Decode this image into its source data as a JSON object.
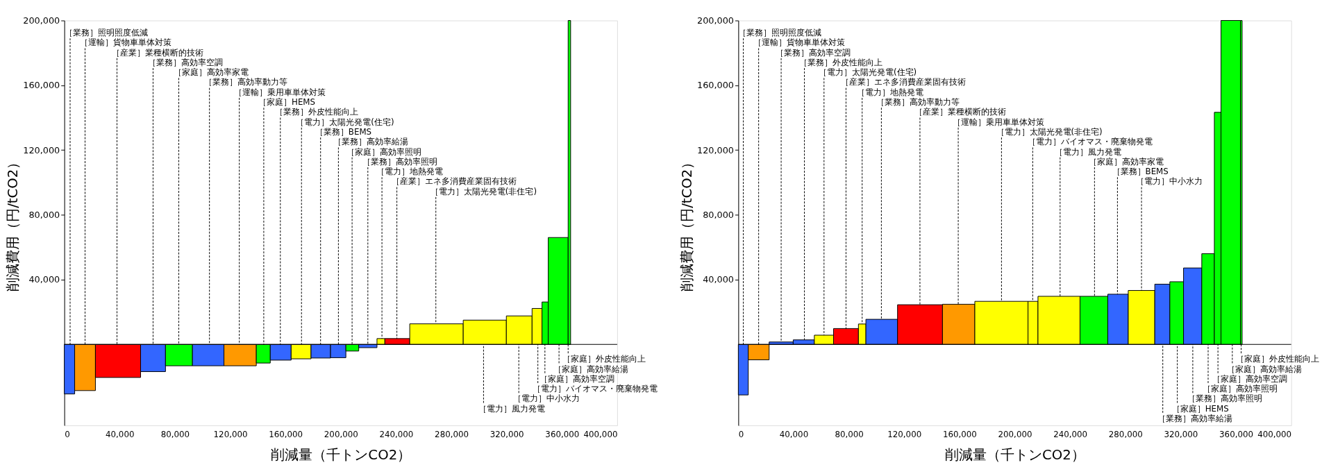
{
  "chart_data": [
    {
      "type": "histogram",
      "xlabel": "削減量（千トンCO2）",
      "ylabel": "削減費用（円/tCO2）",
      "xlim": [
        0,
        400000
      ],
      "xticks": [
        0,
        {
          "value": 40000,
          "label": "40,000"
        },
        {
          "value": 80000,
          "label": "80,000"
        },
        {
          "value": 120000,
          "label": "120,000"
        },
        {
          "value": 160000,
          "label": "160,000"
        },
        {
          "value": 200000,
          "label": "200,000"
        },
        {
          "value": 240000,
          "label": "240,000"
        },
        {
          "value": 280000,
          "label": "280,000"
        },
        {
          "value": 320000,
          "label": "320,000"
        },
        {
          "value": 360000,
          "label": "360,000"
        },
        {
          "value": 400000,
          "label": "400,000"
        }
      ],
      "ylim": [
        -50000,
        200000
      ],
      "yticks": [
        {
          "value": 40000,
          "label": "40,000"
        },
        {
          "value": 80000,
          "label": "80,000"
        },
        {
          "value": 120000,
          "label": "120,000"
        },
        {
          "value": 160000,
          "label": "160,000"
        },
        {
          "value": 200000,
          "label": "200,000"
        }
      ],
      "ref_lines": [
        {
          "axis": "y",
          "value": 0,
          "color": "#000000"
        }
      ],
      "bins": [
        0,
        7500,
        22500,
        55200,
        73200,
        92700,
        115500,
        138900,
        149000,
        164100,
        178500,
        192600,
        203700,
        213000,
        226200,
        231900,
        249900,
        288600,
        319800,
        338400,
        345600,
        350100,
        364500,
        366300
      ],
      "values": [
        -30600,
        -28500,
        -20400,
        -16800,
        -13200,
        -13200,
        -13200,
        -11500,
        -9700,
        -8900,
        -8400,
        -8200,
        -4100,
        -2000,
        3600,
        3600,
        12700,
        15000,
        17600,
        22200,
        26200,
        66000,
        200000
      ],
      "colors": [
        "#3366ff",
        "#ff9900",
        "#ff0000",
        "#3366ff",
        "#00ff00",
        "#3366ff",
        "#ff9900",
        "#00ff00",
        "#3366ff",
        "#ffff00",
        "#3366ff",
        "#3366ff",
        "#00ff00",
        "#3366ff",
        "#ffff00",
        "#ff0000",
        "#ffff00",
        "#ffff00",
        "#ffff00",
        "#ffff00",
        "#00ff00",
        "#00ff00",
        "#00ff00"
      ],
      "annotations": [
        {
          "text": "［業務］照明照度低減",
          "x": 4200,
          "y": 0
        },
        {
          "text": "［運輸］貨物車単体対策",
          "x": 15000,
          "y": 0
        },
        {
          "text": "［産業］業種横断的技術",
          "x": 38100,
          "y": 0
        },
        {
          "text": "［業務］高効率空調",
          "x": 64200,
          "y": 0
        },
        {
          "text": "［家庭］高効率家電",
          "x": 82800,
          "y": 0
        },
        {
          "text": "［業務］高効率動力等",
          "x": 105000,
          "y": 0
        },
        {
          "text": "［運輸］乗用車単体対策",
          "x": 126600,
          "y": 0
        },
        {
          "text": "［家庭］HEMS",
          "x": 144300,
          "y": 0
        },
        {
          "text": "［業務］外皮性能向上",
          "x": 156300,
          "y": 0
        },
        {
          "text": "［電力］太陽光発電(住宅)",
          "x": 171600,
          "y": 0
        },
        {
          "text": "［業務］BEMS",
          "x": 185400,
          "y": 0
        },
        {
          "text": "［業務］高効率給湯",
          "x": 198300,
          "y": 0
        },
        {
          "text": "［家庭］高効率照明",
          "x": 208200,
          "y": 0
        },
        {
          "text": "［業務］高効率照明",
          "x": 219600,
          "y": 0
        },
        {
          "text": "［電力］地熱発電",
          "x": 229800,
          "y": 3600
        },
        {
          "text": "［産業］エネ多消費産業固有技術",
          "x": 240600,
          "y": 3600
        },
        {
          "text": "［電力］太陽光発電(非住宅)",
          "x": 268800,
          "y": 12700
        },
        {
          "text": "［電力］風力発電",
          "x": 303300,
          "y": 0
        },
        {
          "text": "［電力］中小水力",
          "x": 328800,
          "y": 0
        },
        {
          "text": "［電力］バイオマス・廃棄物発電",
          "x": 342600,
          "y": 0
        },
        {
          "text": "［家庭］高効率空調",
          "x": 347700,
          "y": 0
        },
        {
          "text": "［家庭］高効率給湯",
          "x": 357900,
          "y": 0
        },
        {
          "text": "［家庭］外皮性能向上",
          "x": 364500,
          "y": 0
        }
      ]
    },
    {
      "type": "histogram",
      "xlabel": "削減量（千トンCO2）",
      "ylabel": "削減費用（円/tCO2）",
      "xlim": [
        0,
        400000
      ],
      "xticks": [
        0,
        {
          "value": 40000,
          "label": "40,000"
        },
        {
          "value": 80000,
          "label": "80,000"
        },
        {
          "value": 120000,
          "label": "120,000"
        },
        {
          "value": 160000,
          "label": "160,000"
        },
        {
          "value": 200000,
          "label": "200,000"
        },
        {
          "value": 240000,
          "label": "240,000"
        },
        {
          "value": 280000,
          "label": "280,000"
        },
        {
          "value": 320000,
          "label": "320,000"
        },
        {
          "value": 360000,
          "label": "360,000"
        },
        {
          "value": 400000,
          "label": "400,000"
        }
      ],
      "ylim": [
        -50000,
        200000
      ],
      "yticks": [
        {
          "value": 40000,
          "label": "40,000"
        },
        {
          "value": 80000,
          "label": "80,000"
        },
        {
          "value": 120000,
          "label": "120,000"
        },
        {
          "value": 160000,
          "label": "160,000"
        },
        {
          "value": 200000,
          "label": "200,000"
        }
      ],
      "ref_lines": [
        {
          "axis": "y",
          "value": 0,
          "color": "#000000"
        }
      ],
      "bins": [
        0,
        7200,
        22300,
        39700,
        55000,
        68900,
        86900,
        92300,
        115200,
        147700,
        171100,
        209600,
        216800,
        247200,
        267300,
        282100,
        301300,
        312200,
        322100,
        335300,
        344400,
        349200,
        363300,
        364500
      ],
      "values": [
        -31200,
        -9500,
        1500,
        2800,
        5700,
        9800,
        12600,
        15500,
        24500,
        24800,
        26600,
        26600,
        29700,
        29700,
        31000,
        33300,
        37200,
        38700,
        47200,
        56000,
        143300,
        200000,
        200000
      ],
      "colors": [
        "#3366ff",
        "#ff9900",
        "#3366ff",
        "#3366ff",
        "#ffff00",
        "#ff0000",
        "#ffff00",
        "#3366ff",
        "#ff0000",
        "#ff9900",
        "#ffff00",
        "#ffff00",
        "#ffff00",
        "#00ff00",
        "#3366ff",
        "#ffff00",
        "#3366ff",
        "#00ff00",
        "#3366ff",
        "#00ff00",
        "#00ff00",
        "#00ff00",
        "#00ff00"
      ],
      "annotations": [
        {
          "text": "［業務］照明照度低減",
          "x": 3600,
          "y": 0
        },
        {
          "text": "［運輸］貨物車単体対策",
          "x": 14700,
          "y": 0
        },
        {
          "text": "［業務］高効率空調",
          "x": 31000,
          "y": 1500
        },
        {
          "text": "［業務］外皮性能向上",
          "x": 47800,
          "y": 2800
        },
        {
          "text": "［電力］太陽光発電(住宅)",
          "x": 62000,
          "y": 5700
        },
        {
          "text": "［産業］エネ多消費産業固有技術",
          "x": 77900,
          "y": 9800
        },
        {
          "text": "［電力］地熱発電",
          "x": 89600,
          "y": 12600
        },
        {
          "text": "［業務］高効率動力等",
          "x": 103500,
          "y": 15500
        },
        {
          "text": "［産業］業種横断的技術",
          "x": 131400,
          "y": 24500
        },
        {
          "text": "［運輸］乗用車単体対策",
          "x": 159100,
          "y": 24800
        },
        {
          "text": "［電力］太陽光発電(非住宅)",
          "x": 190400,
          "y": 26600
        },
        {
          "text": "［電力］バイオマス・廃棄物発電",
          "x": 213000,
          "y": 26600
        },
        {
          "text": "［電力］風力発電",
          "x": 232800,
          "y": 29700
        },
        {
          "text": "［家庭］高効率家電",
          "x": 257700,
          "y": 29700
        },
        {
          "text": "［業務］BEMS",
          "x": 274300,
          "y": 31000
        },
        {
          "text": "［電力］中小水力",
          "x": 291700,
          "y": 33300
        },
        {
          "text": "［業務］高効率給湯",
          "x": 307100,
          "y": 0
        },
        {
          "text": "［家庭］HEMS",
          "x": 317600,
          "y": 0
        },
        {
          "text": "［業務］高効率照明",
          "x": 328800,
          "y": 0
        },
        {
          "text": "［家庭］高効率照明",
          "x": 339900,
          "y": 0
        },
        {
          "text": "［家庭］高効率空調",
          "x": 347000,
          "y": 0
        },
        {
          "text": "［家庭］高効率給湯",
          "x": 357400,
          "y": 0
        },
        {
          "text": "［家庭］外皮性能向上",
          "x": 363800,
          "y": 0
        }
      ]
    }
  ]
}
